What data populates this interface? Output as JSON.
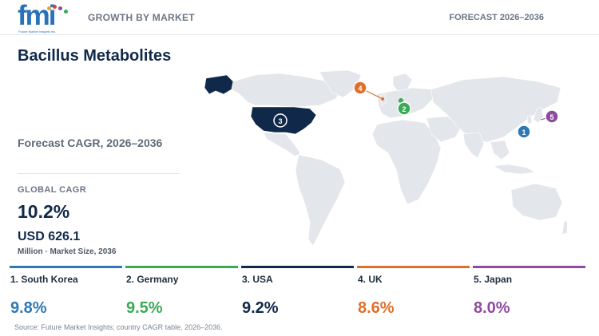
{
  "header": {
    "logo_text": "fmi",
    "logo_tagline": "Future Market Insights Inc.",
    "left_label": "GROWTH BY MARKET",
    "right_label": "FORECAST 2026–2036"
  },
  "title": "Bacillus Metabolites",
  "forecast_label": "Forecast CAGR, 2026–2036",
  "global": {
    "label": "GLOBAL CAGR",
    "value": "10.2%",
    "market_size": "USD 626.1",
    "market_size_label": "Million · Market Size, 2036"
  },
  "countries": [
    {
      "rank": "1",
      "label": "1. South Korea",
      "cagr": "9.8%",
      "color": "#2e78b5"
    },
    {
      "rank": "2",
      "label": "2. Germany",
      "cagr": "9.5%",
      "color": "#3aaa55"
    },
    {
      "rank": "3",
      "label": "3. USA",
      "cagr": "9.2%",
      "color": "#10294a"
    },
    {
      "rank": "4",
      "label": "4. UK",
      "cagr": "8.6%",
      "color": "#df6f2a"
    },
    {
      "rank": "5",
      "label": "5. Japan",
      "cagr": "8.0%",
      "color": "#8e4a9e"
    }
  ],
  "source": "Source: Future Market Insights; country CAGR table, 2026–2036.",
  "colors": {
    "land": "#e3e6ea",
    "highlight_usa": "#10294a",
    "text_dark": "#10294a",
    "text_muted": "#6b7685"
  }
}
